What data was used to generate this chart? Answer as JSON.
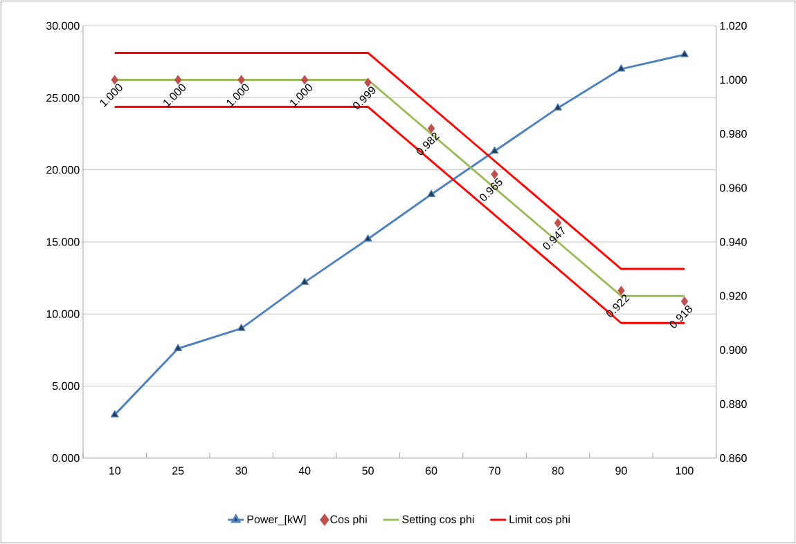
{
  "chart_data": {
    "type": "line",
    "categories": [
      "10",
      "25",
      "30",
      "40",
      "50",
      "60",
      "70",
      "80",
      "90",
      "100"
    ],
    "ylim": [
      0,
      30
    ],
    "yticks": [
      {
        "value": 0,
        "label": "0.000"
      },
      {
        "value": 5,
        "label": "5.000"
      },
      {
        "value": 10,
        "label": "10.000"
      },
      {
        "value": 15,
        "label": "15.000"
      },
      {
        "value": 20,
        "label": "20.000"
      },
      {
        "value": 25,
        "label": "25.000"
      },
      {
        "value": 30,
        "label": "30.000"
      }
    ],
    "y2lim": [
      0.86,
      1.02
    ],
    "y2ticks": [
      {
        "value": 0.86,
        "label": "0.860"
      },
      {
        "value": 0.88,
        "label": "0.880"
      },
      {
        "value": 0.9,
        "label": "0.900"
      },
      {
        "value": 0.92,
        "label": "0.920"
      },
      {
        "value": 0.94,
        "label": "0.940"
      },
      {
        "value": 0.96,
        "label": "0.960"
      },
      {
        "value": 0.98,
        "label": "0.980"
      },
      {
        "value": 1.0,
        "label": "1.000"
      },
      {
        "value": 1.02,
        "label": "1.020"
      }
    ],
    "grid": "y",
    "legend": "bottom",
    "series": [
      {
        "name": "Power_[kW]",
        "color": "#4f81bd",
        "marker": "triangle",
        "values": [
          3.0,
          7.6,
          9.0,
          12.2,
          15.2,
          18.3,
          21.3,
          24.3,
          27.0,
          28.0
        ]
      },
      {
        "name": "Cos phi",
        "type": "scatter",
        "axis": "y2",
        "color": "#c0504d",
        "marker": "diamond",
        "values": [
          1.0,
          1.0,
          1.0,
          1.0,
          0.999,
          0.982,
          0.965,
          0.947,
          0.922,
          0.918
        ],
        "value_labels": [
          "1.000",
          "1.000",
          "1.000",
          "1.000",
          "0.999",
          "0.982",
          "0.965",
          "0.947",
          "0.922",
          "0.918"
        ]
      },
      {
        "name": "Setting cos phi",
        "axis": "y2",
        "color": "#9bbb59",
        "marker": "none",
        "values": [
          1.0,
          1.0,
          1.0,
          1.0,
          1.0,
          0.98,
          0.96,
          0.94,
          0.92,
          0.92
        ]
      },
      {
        "name": "Limit cos phi",
        "axis": "y2",
        "color": "#ff0000",
        "marker": "none",
        "values": [
          1.01,
          1.01,
          1.01,
          1.01,
          1.01,
          0.99,
          0.97,
          0.95,
          0.93,
          0.93
        ]
      },
      {
        "axis": "y2",
        "color": "#ff0000",
        "marker": "none",
        "values": [
          0.99,
          0.99,
          0.99,
          0.99,
          0.99,
          0.97,
          0.95,
          0.93,
          0.91,
          0.91
        ]
      }
    ]
  }
}
